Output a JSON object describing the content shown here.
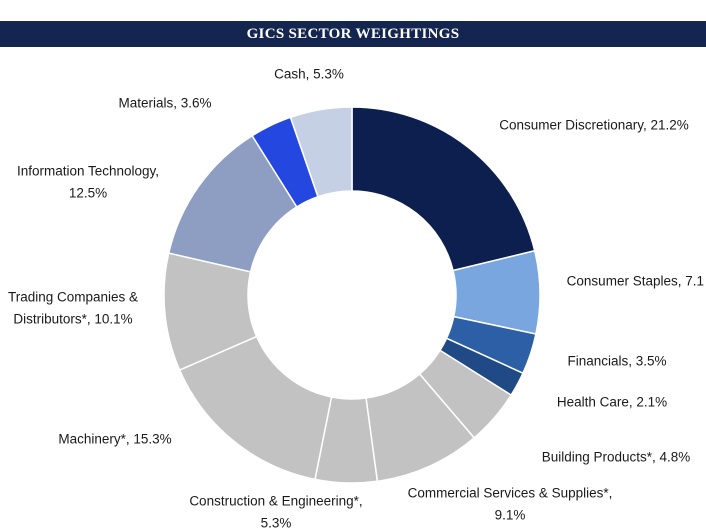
{
  "chart_data": {
    "type": "donut",
    "title": "GICS SECTOR WEIGHTINGS",
    "labels": [
      [
        "Consumer Discretionary, 21.2%"
      ],
      [
        "Consumer Staples, 7.1"
      ],
      [
        "Financials, 3.5%"
      ],
      [
        "Health Care, 2.1%"
      ],
      [
        "Building Products*, 4.8%"
      ],
      [
        "Commercial Services & Supplies*,",
        "9.1%"
      ],
      [
        "Construction & Engineering*,",
        "5.3%"
      ],
      [
        "Machinery*, 15.3%"
      ],
      [
        "Trading Companies &",
        "Distributors*, 10.1%"
      ],
      [
        "Information Technology,",
        "12.5%"
      ],
      [
        "Materials, 3.6%"
      ],
      [
        "Cash, 5.3%"
      ]
    ],
    "values": [
      21.2,
      7.1,
      3.5,
      2.1,
      4.8,
      9.1,
      5.3,
      15.3,
      10.1,
      12.5,
      3.6,
      5.3
    ],
    "colors": [
      "#0c1f4e",
      "#79a6df",
      "#2d5fa6",
      "#1f4a86",
      "#c2c2c2",
      "#c2c2c2",
      "#c2c2c2",
      "#c2c2c2",
      "#c2c2c2",
      "#8e9ec2",
      "#2447e0",
      "#c6d0e4"
    ]
  }
}
